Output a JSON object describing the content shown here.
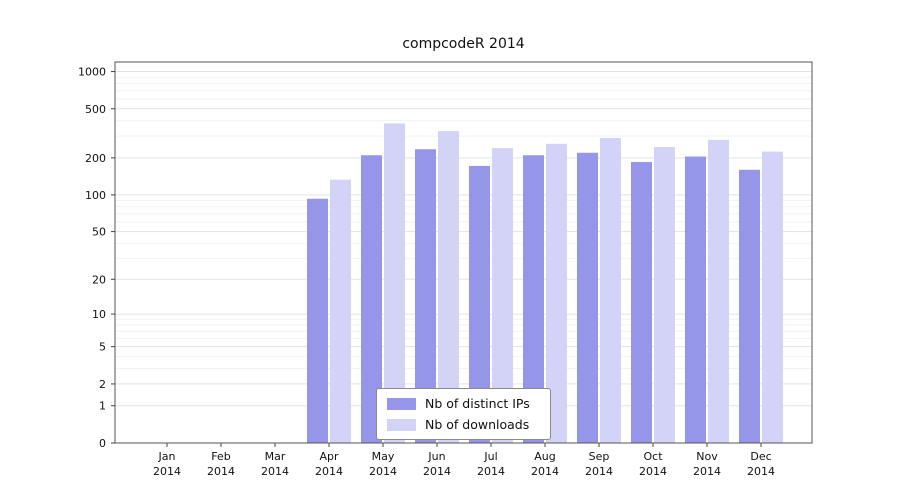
{
  "chart_data": {
    "type": "bar",
    "title": "compcodeR 2014",
    "months": [
      "Jan",
      "Feb",
      "Mar",
      "Apr",
      "May",
      "Jun",
      "Jul",
      "Aug",
      "Sep",
      "Oct",
      "Nov",
      "Dec"
    ],
    "year": "2014",
    "series": [
      {
        "name": "Nb of distinct IPs",
        "color": "#9595ea",
        "values": [
          0,
          0,
          0,
          93,
          210,
          235,
          172,
          210,
          220,
          185,
          205,
          160
        ]
      },
      {
        "name": "Nb of downloads",
        "color": "#d3d3f7",
        "values": [
          0,
          0,
          0,
          133,
          380,
          330,
          240,
          260,
          290,
          245,
          280,
          225
        ]
      }
    ],
    "y_ticks": [
      0,
      1,
      2,
      5,
      10,
      20,
      50,
      100,
      200,
      500,
      1000
    ],
    "y_scale": "log1p",
    "ylim": [
      0,
      1200
    ],
    "xlabel": "",
    "ylabel": "",
    "grid": true,
    "legend_position": "bottom-center"
  }
}
